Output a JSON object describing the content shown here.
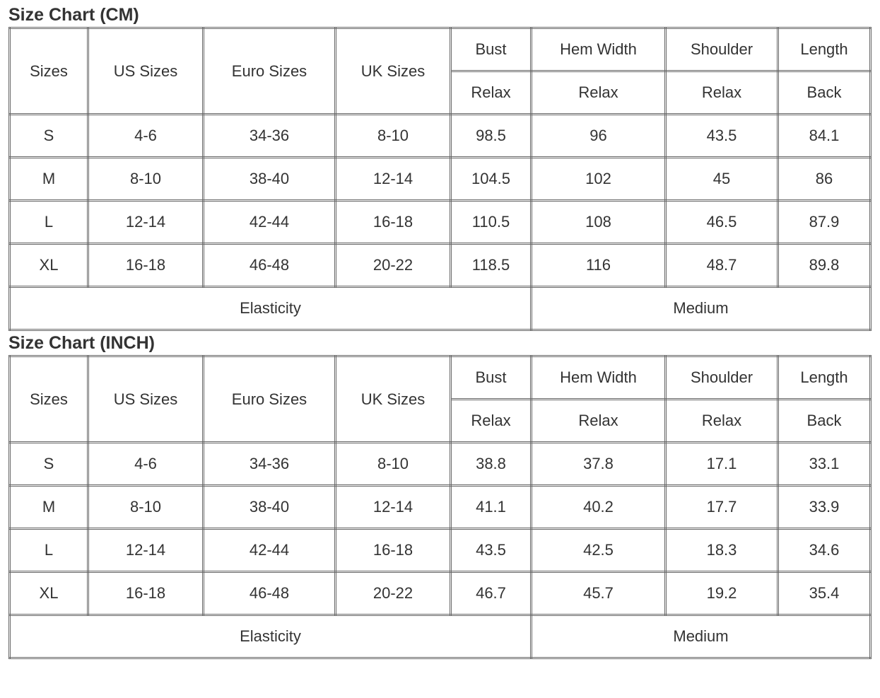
{
  "tables": [
    {
      "title": "Size Chart (CM)",
      "header": [
        "Sizes",
        "US Sizes",
        "Euro Sizes",
        "UK Sizes",
        "Bust",
        "Hem Width",
        "Shoulder",
        "Length"
      ],
      "subheader": [
        "Relax",
        "Relax",
        "Relax",
        "Back"
      ],
      "rows": [
        [
          "S",
          "4-6",
          "34-36",
          "8-10",
          98.5,
          96,
          43.5,
          84.1
        ],
        [
          "M",
          "8-10",
          "38-40",
          "12-14",
          104.5,
          102,
          45,
          86
        ],
        [
          "L",
          "12-14",
          "42-44",
          "16-18",
          110.5,
          108,
          46.5,
          87.9
        ],
        [
          "XL",
          "16-18",
          "46-48",
          "20-22",
          118.5,
          116,
          48.7,
          89.8
        ]
      ],
      "footer": [
        "Elasticity",
        "Medium"
      ]
    },
    {
      "title": "Size Chart (INCH)",
      "header": [
        "Sizes",
        "US Sizes",
        "Euro Sizes",
        "UK Sizes",
        "Bust",
        "Hem Width",
        "Shoulder",
        "Length"
      ],
      "subheader": [
        "Relax",
        "Relax",
        "Relax",
        "Back"
      ],
      "rows": [
        [
          "S",
          "4-6",
          "34-36",
          "8-10",
          38.8,
          37.8,
          17.1,
          33.1
        ],
        [
          "M",
          "8-10",
          "38-40",
          "12-14",
          41.1,
          40.2,
          17.7,
          33.9
        ],
        [
          "L",
          "12-14",
          "42-44",
          "16-18",
          43.5,
          42.5,
          18.3,
          34.6
        ],
        [
          "XL",
          "16-18",
          "46-48",
          "20-22",
          46.7,
          45.7,
          19.2,
          35.4
        ]
      ],
      "footer": [
        "Elasticity",
        "Medium"
      ]
    }
  ]
}
